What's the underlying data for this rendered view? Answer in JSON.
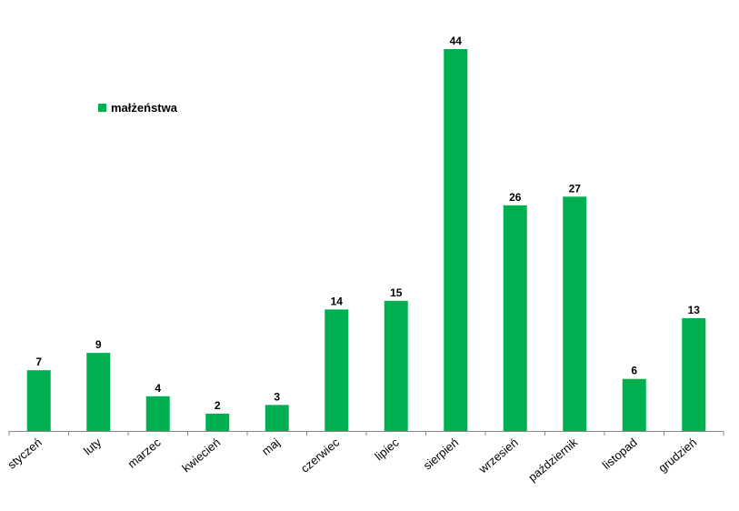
{
  "chart_data": {
    "type": "bar",
    "categories": [
      "styczeń",
      "luty",
      "marzec",
      "kwiecień",
      "maj",
      "czerwiec",
      "lipiec",
      "sierpień",
      "wrzesień",
      "październik",
      "listopad",
      "grudzień"
    ],
    "series": [
      {
        "name": "małżeństwa",
        "values": [
          7,
          9,
          4,
          2,
          3,
          14,
          15,
          44,
          26,
          27,
          6,
          13
        ],
        "color": "#00b050"
      }
    ],
    "title": "",
    "xlabel": "",
    "ylabel": "",
    "ylim": [
      0,
      44
    ],
    "grid": false,
    "legend": "top-left",
    "data_labels": true,
    "x_tick_rotation": "diagonal"
  }
}
